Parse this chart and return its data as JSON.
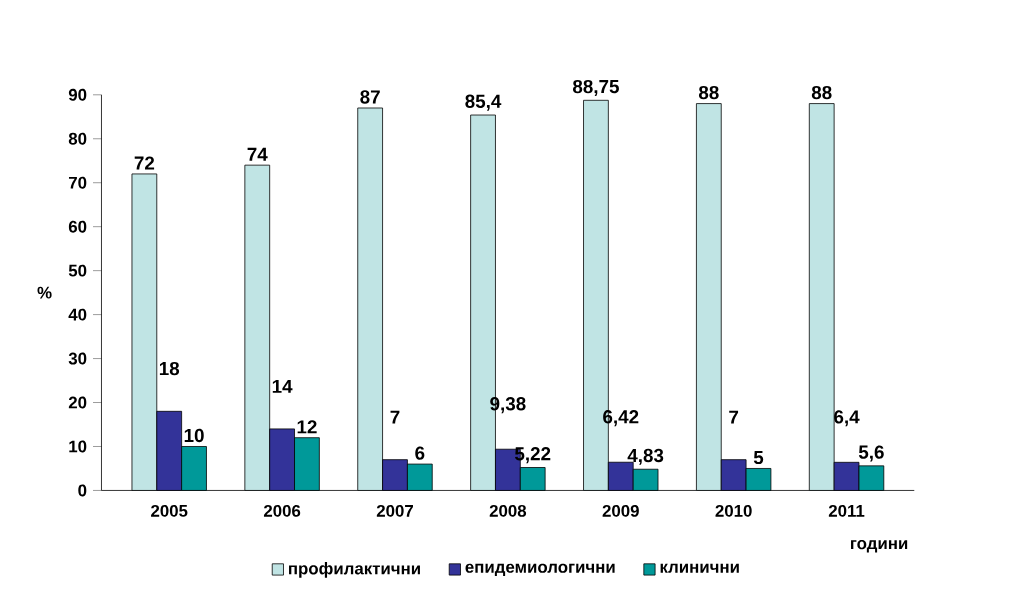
{
  "chart_data": {
    "type": "bar",
    "xlabel": "години",
    "ylabel": "%",
    "categories": [
      "2005",
      "2006",
      "2007",
      "2008",
      "2009",
      "2010",
      "2011"
    ],
    "series": [
      {
        "name": "профилактични",
        "color": "#c0e4e4",
        "values": [
          72,
          74,
          87,
          85.4,
          88.75,
          88,
          88
        ],
        "value_labels": [
          "72",
          "74",
          "87",
          "85,4",
          "88,75",
          "88",
          "88"
        ]
      },
      {
        "name": "епидемиологични",
        "color": "#333399",
        "values": [
          18,
          14,
          7,
          9.38,
          6.42,
          7,
          6.4
        ],
        "value_labels": [
          "18",
          "14",
          "7",
          "9,38",
          "6,42",
          "7",
          "6,4"
        ]
      },
      {
        "name": "клинични",
        "color": "#009999",
        "values": [
          10,
          12,
          6,
          5.22,
          4.83,
          5,
          5.6
        ],
        "value_labels": [
          "10",
          "12",
          "6",
          "5,22",
          "4,83",
          "5",
          "5,6"
        ]
      }
    ],
    "ylim": [
      0,
      90
    ],
    "yticks": [
      0,
      10,
      20,
      30,
      40,
      50,
      60,
      70,
      80,
      90
    ],
    "legend": "bottom"
  }
}
